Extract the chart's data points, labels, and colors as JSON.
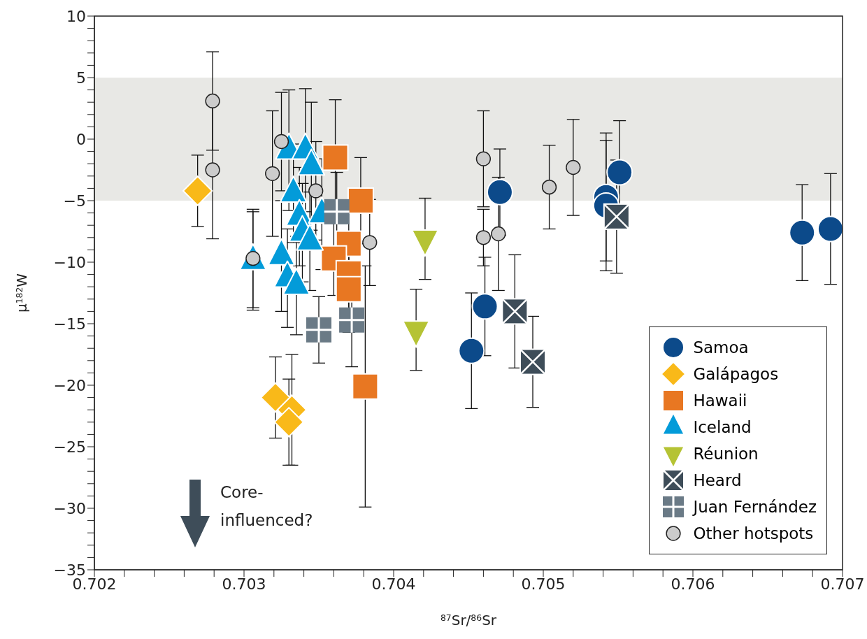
{
  "chart_data": {
    "type": "scatter",
    "xlabel": "$^{87}$Sr/$^{86}$Sr",
    "ylabel": "μ$^{182}$W",
    "xlim": [
      0.702,
      0.707
    ],
    "xticks": [
      0.702,
      {
        "value": 0.7022,
        "label": null
      },
      {
        "value": 0.7024,
        "label": null
      },
      {
        "value": 0.7026,
        "label": null
      },
      {
        "value": 0.7028,
        "label": null
      },
      0.703,
      {
        "value": 0.7032,
        "label": null
      },
      {
        "value": 0.7034,
        "label": null
      },
      {
        "value": 0.7036,
        "label": null
      },
      {
        "value": 0.7038,
        "label": null
      },
      0.704,
      {
        "value": 0.7042,
        "label": null
      },
      {
        "value": 0.7044,
        "label": null
      },
      {
        "value": 0.7046,
        "label": null
      },
      {
        "value": 0.7048,
        "label": null
      },
      0.705,
      {
        "value": 0.7052,
        "label": null
      },
      {
        "value": 0.7054,
        "label": null
      },
      {
        "value": 0.7056,
        "label": null
      },
      {
        "value": 0.7058,
        "label": null
      },
      0.706,
      {
        "value": 0.7062,
        "label": null
      },
      {
        "value": 0.7064,
        "label": null
      },
      {
        "value": 0.7066,
        "label": null
      },
      {
        "value": 0.7068,
        "label": null
      },
      0.707
    ],
    "ylim": [
      -35,
      10
    ],
    "yticks": [
      {
        "value": -35,
        "label": "−35"
      },
      {
        "value": -34,
        "label": null
      },
      {
        "value": -33,
        "label": null
      },
      {
        "value": -32,
        "label": null
      },
      {
        "value": -31,
        "label": null
      },
      {
        "value": -30,
        "label": "−30"
      },
      {
        "value": -29,
        "label": null
      },
      {
        "value": -28,
        "label": null
      },
      {
        "value": -27,
        "label": null
      },
      {
        "value": -26,
        "label": null
      },
      {
        "value": -25,
        "label": "−25"
      },
      {
        "value": -24,
        "label": null
      },
      {
        "value": -23,
        "label": null
      },
      {
        "value": -22,
        "label": null
      },
      {
        "value": -21,
        "label": null
      },
      {
        "value": -20,
        "label": "−20"
      },
      {
        "value": -19,
        "label": null
      },
      {
        "value": -18,
        "label": null
      },
      {
        "value": -17,
        "label": null
      },
      {
        "value": -16,
        "label": null
      },
      {
        "value": -15,
        "label": "−15"
      },
      {
        "value": -14,
        "label": null
      },
      {
        "value": -13,
        "label": null
      },
      {
        "value": -12,
        "label": null
      },
      {
        "value": -11,
        "label": null
      },
      {
        "value": -10,
        "label": "−10"
      },
      {
        "value": -9,
        "label": null
      },
      {
        "value": -8,
        "label": null
      },
      {
        "value": -7,
        "label": null
      },
      {
        "value": -6,
        "label": null
      },
      {
        "value": -5,
        "label": "−5"
      },
      {
        "value": -4,
        "label": null
      },
      {
        "value": -3,
        "label": null
      },
      {
        "value": -2,
        "label": null
      },
      {
        "value": -1,
        "label": null
      },
      0,
      {
        "value": 1,
        "label": null
      },
      {
        "value": 2,
        "label": null
      },
      {
        "value": 3,
        "label": null
      },
      {
        "value": 4,
        "label": null
      },
      5,
      {
        "value": 6,
        "label": null
      },
      {
        "value": 7,
        "label": null
      },
      {
        "value": 8,
        "label": null
      },
      {
        "value": 9,
        "label": null
      },
      10
    ],
    "bands": [
      {
        "axis": "y",
        "from": -5,
        "to": 5,
        "color": "#e8e8e5"
      }
    ],
    "legend": "bottom right",
    "annotations": [
      "Core-\ninfluenced?"
    ],
    "series": [
      {
        "name": "Samoa",
        "color": "#0c4a8a",
        "marker": "circle",
        "x": [
          0.70452,
          0.70471,
          0.70461,
          0.70542,
          0.70542,
          0.70551,
          0.70673,
          0.70692
        ],
        "values": [
          -17.2,
          -4.3,
          -13.6,
          -4.7,
          -5.4,
          -2.7,
          -7.6,
          -7.3
        ],
        "errors": [
          4.7,
          3.5,
          4,
          5.2,
          5.3,
          4.2,
          3.9,
          4.5
        ]
      },
      {
        "name": "Galápagos",
        "color": "#f9b919",
        "marker": "diamond",
        "x": [
          0.70269,
          0.70321,
          0.70332,
          0.7033
        ],
        "values": [
          -4.2,
          -21,
          -22,
          -23
        ],
        "errors": [
          2.9,
          3.3,
          4.5,
          3.5
        ]
      },
      {
        "name": "Hawaii",
        "color": "#e87722",
        "marker": "square",
        "x": [
          0.70361,
          0.70378,
          0.7037,
          0.7036,
          0.7037,
          0.7037,
          0.70381
        ],
        "values": [
          -1.5,
          -5,
          -8.5,
          -9.7,
          -10.9,
          -12.2,
          -20.1
        ],
        "errors": [
          4.7,
          3.5,
          3,
          3,
          3,
          3.5,
          9.8
        ]
      },
      {
        "name": "Iceland",
        "color": "#039bd9",
        "marker": "triangle",
        "x": [
          0.7033,
          0.70341,
          0.70345,
          0.70333,
          0.70337,
          0.70339,
          0.70352,
          0.70306,
          0.70325,
          0.70329,
          0.70335,
          0.70344
        ],
        "values": [
          -0.9,
          -0.9,
          -2.2,
          -4.4,
          -6.3,
          -7.6,
          -6.1,
          -9.9,
          -9.5,
          -11.3,
          -11.9,
          -8.3
        ],
        "errors": [
          4.9,
          5,
          5.2,
          4,
          4,
          4,
          4.5,
          4,
          4.5,
          4,
          4,
          4
        ]
      },
      {
        "name": "Réunion",
        "color": "#b5c334",
        "marker": "triangle-down",
        "x": [
          0.70421,
          0.70415
        ],
        "values": [
          -8.1,
          -15.5
        ],
        "errors": [
          3.3,
          3.3
        ]
      },
      {
        "name": "Heard",
        "color": "#3e4d59",
        "marker": "square-x",
        "x": [
          0.70549,
          0.70481,
          0.70493
        ],
        "values": [
          -6.3,
          -14,
          -18.1
        ],
        "errors": [
          4.6,
          4.6,
          3.7
        ]
      },
      {
        "name": "Juan Fernández",
        "color": "#6a7a86",
        "marker": "square-plus",
        "x": [
          0.70362,
          0.7035,
          0.70372
        ],
        "values": [
          -5.9,
          -15.5,
          -14.7
        ],
        "errors": [
          3.2,
          2.7,
          3.8
        ]
      },
      {
        "name": "Other hotspots",
        "color": "#cccccc",
        "marker": "small-circle",
        "x": [
          0.70279,
          0.70279,
          0.70319,
          0.70325,
          0.70348,
          0.70384,
          0.7046,
          0.7046,
          0.7047,
          0.70504,
          0.7052,
          0.70306
        ],
        "values": [
          3.1,
          -2.5,
          -2.8,
          -0.2,
          -4.2,
          -8.4,
          -1.6,
          -8,
          -7.7,
          -3.9,
          -2.3,
          -9.7
        ],
        "errors": [
          4,
          5.6,
          5.1,
          4,
          4,
          3.5,
          3.9,
          2.3,
          4.6,
          3.4,
          3.9,
          4
        ]
      }
    ]
  }
}
